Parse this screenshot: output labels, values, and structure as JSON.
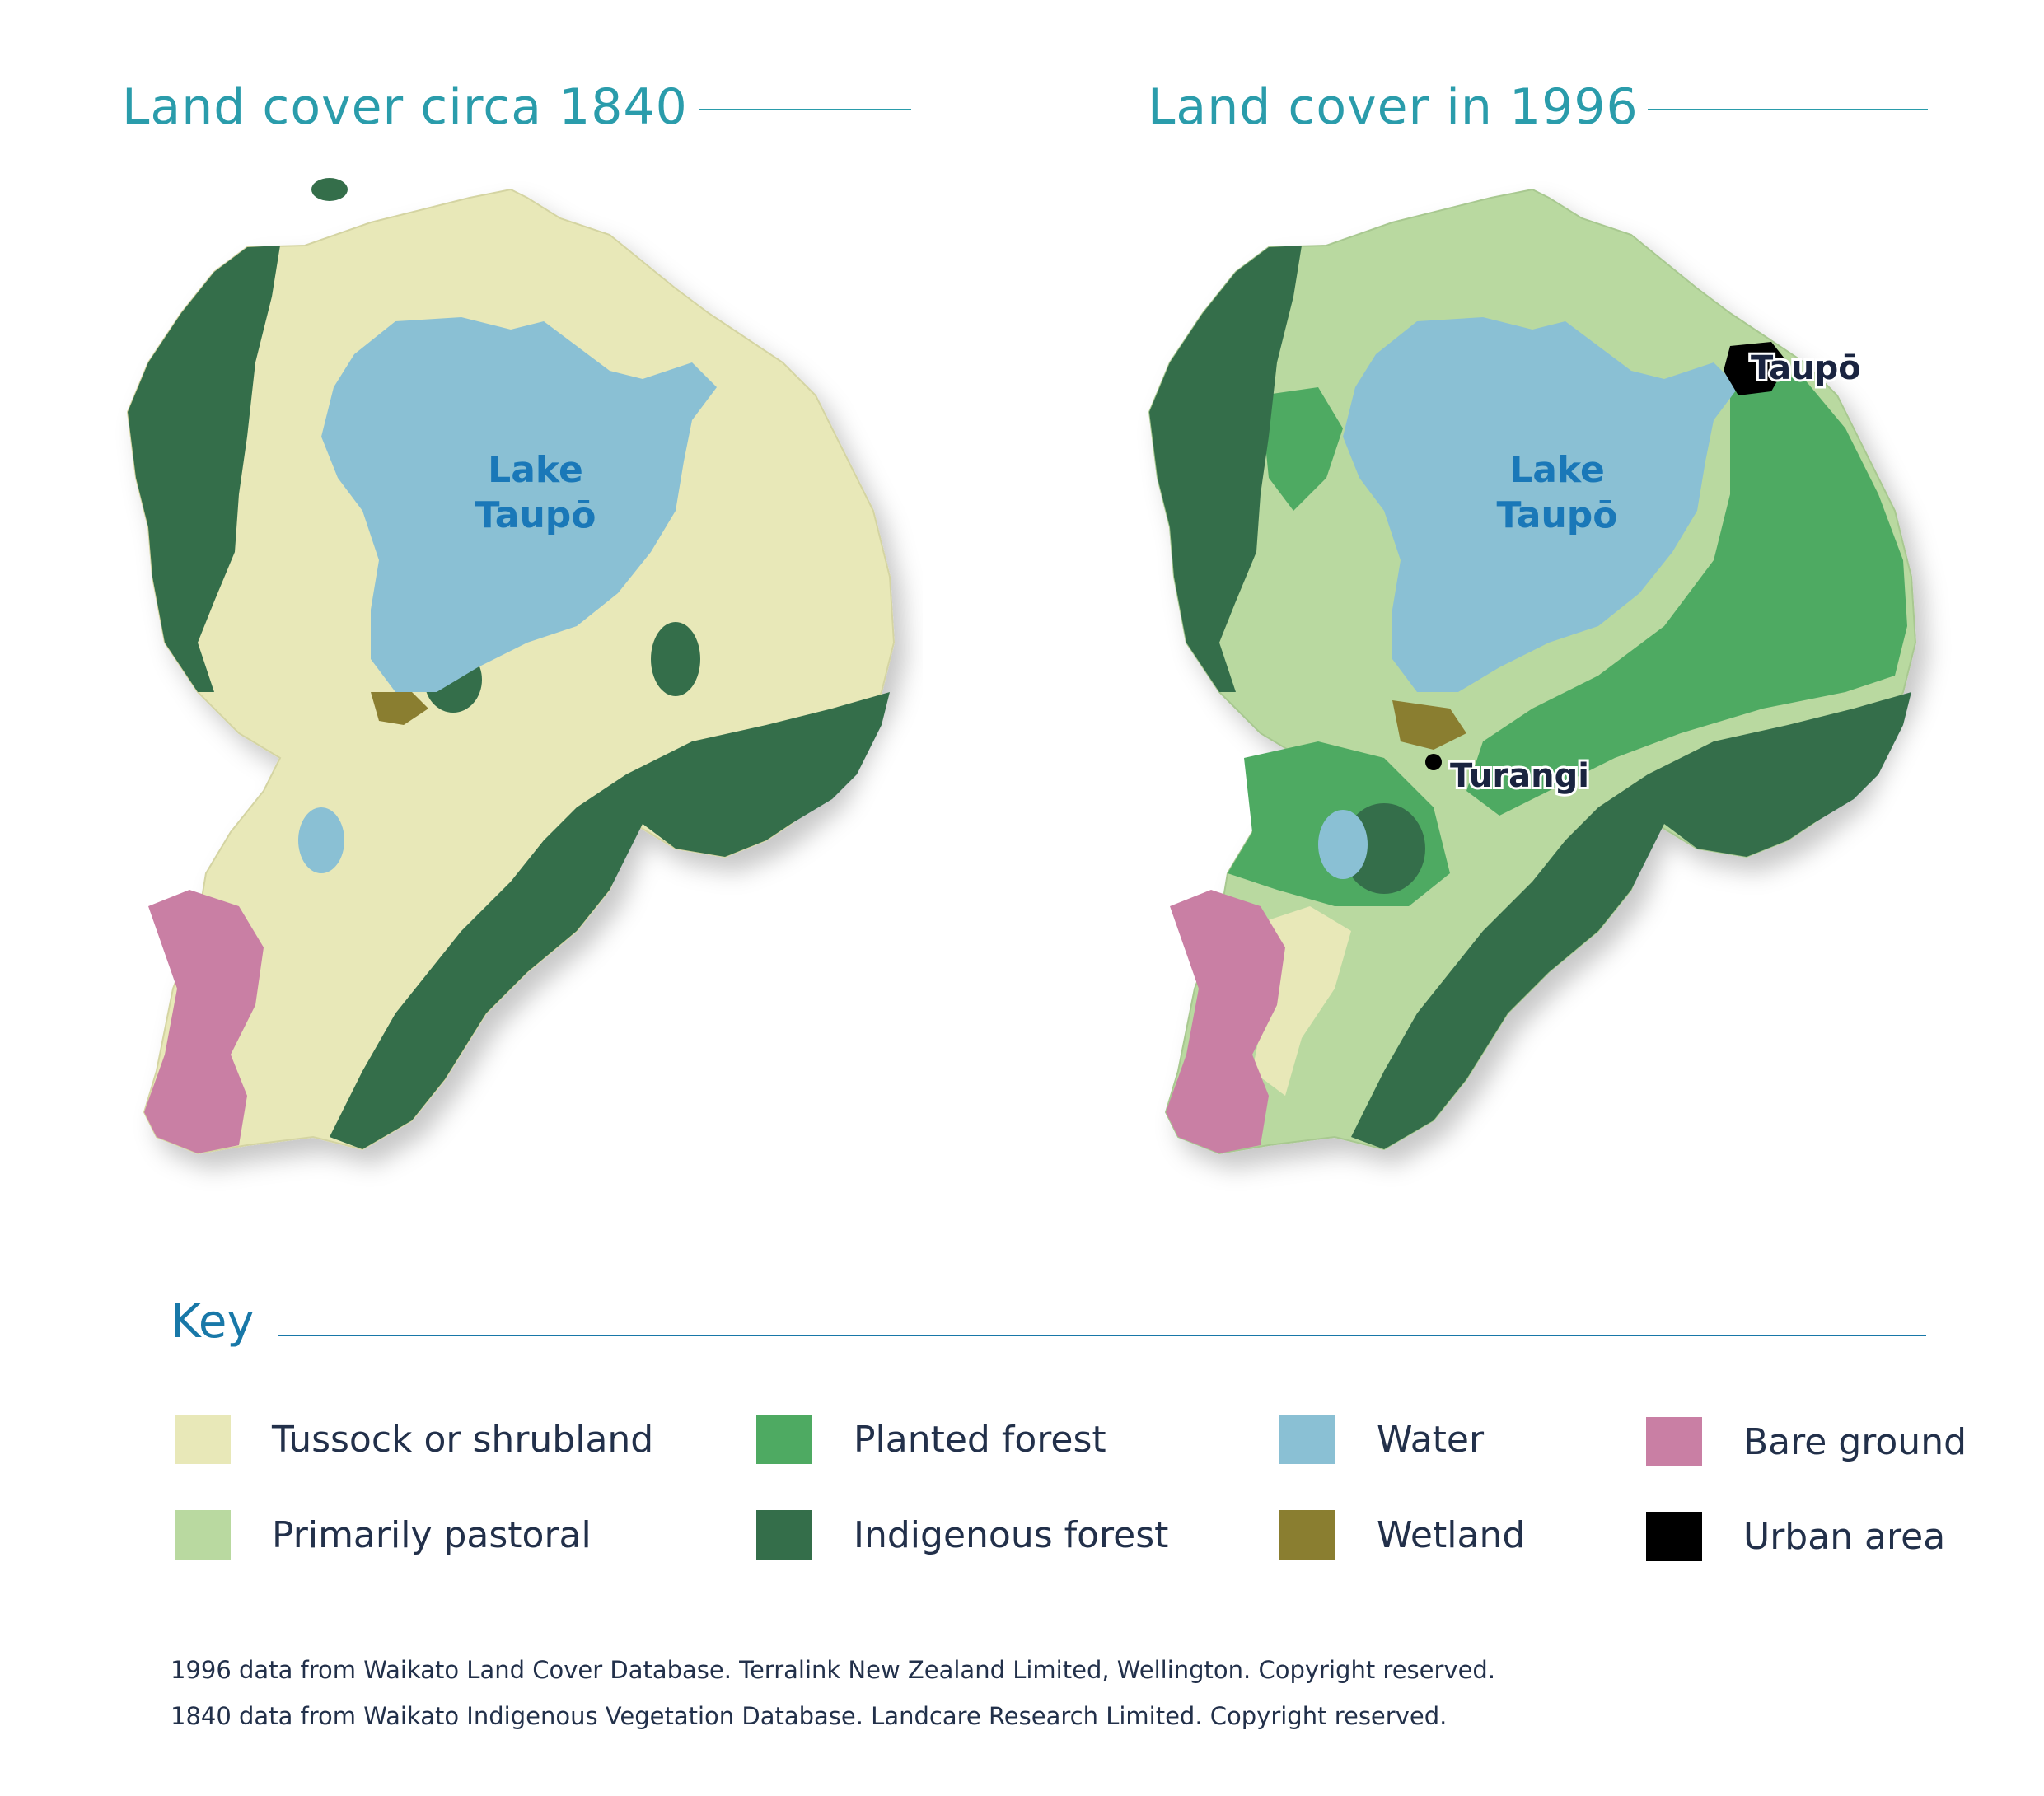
{
  "panels": [
    {
      "title": "Land cover circa 1840",
      "lake_label_line1": "Lake",
      "lake_label_line2": "Taupō"
    },
    {
      "title": "Land cover in 1996",
      "lake_label_line1": "Lake",
      "lake_label_line2": "Taupō",
      "town_labels": [
        "Taupō",
        "Turangi"
      ]
    }
  ],
  "key": {
    "title": "Key",
    "items": [
      {
        "label": "Tussock or shrubland",
        "color": "#e8e8b8"
      },
      {
        "label": "Primarily pastoral",
        "color": "#b9d9a0"
      },
      {
        "label": "Planted forest",
        "color": "#4eaa62"
      },
      {
        "label": "Indigenous forest",
        "color": "#346e4a"
      },
      {
        "label": "Water",
        "color": "#8ac0d4"
      },
      {
        "label": "Wetland",
        "color": "#8a7e30"
      },
      {
        "label": "Bare ground",
        "color": "#c97fa4"
      },
      {
        "label": "Urban area",
        "color": "#000000"
      }
    ]
  },
  "credits": [
    "1996 data from Waikato Land Cover Database. Terralink New Zealand Limited, Wellington. Copyright reserved.",
    "1840 data from Waikato Indigenous Vegetation Database. Landcare Research Limited. Copyright reserved."
  ]
}
